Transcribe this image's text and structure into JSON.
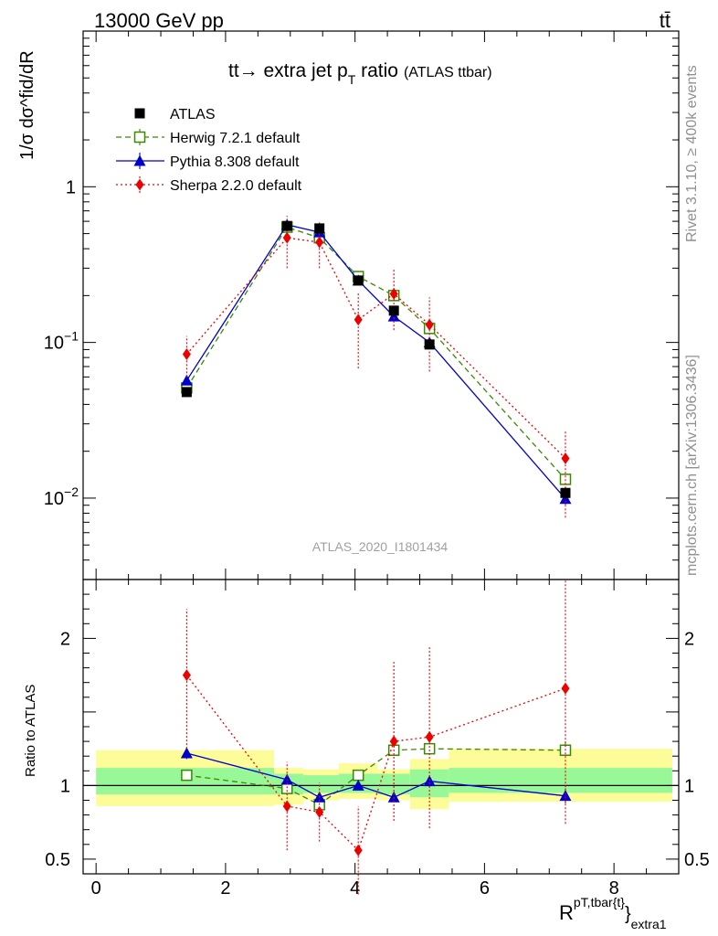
{
  "header": {
    "energy": "13000 GeV pp",
    "process": "tt̄"
  },
  "title": {
    "main": "tt→ extra jet p",
    "sub": "T",
    "tail": " ratio",
    "small": "(ATLAS ttbar)"
  },
  "side_labels": {
    "rivet": "Rivet 3.1.10, ≥ 400k events",
    "mcplots": "mcplots.cern.ch [arXiv:1306.3436]"
  },
  "analysis_id": "ATLAS_2020_I1801434",
  "axes": {
    "ylabel_top": "1/σ dσ^fid/dR",
    "ylabel_ratio": "Ratio to ATLAS",
    "xlabel": "R",
    "xlabel_sup": "pT,tbar{t}",
    "xlabel_close": "}",
    "xlabel_sub": "extra1"
  },
  "colors": {
    "atlas": "#000000",
    "herwig": "#3a8a00",
    "pythia": "#0000cc",
    "sherpa": "#ee0000",
    "band_inner": "#98f898",
    "band_outer": "#fcfc98"
  },
  "chart_data": [
    {
      "type": "line",
      "panel": "main",
      "yscale": "log",
      "xlim": [
        -0.2,
        9.0
      ],
      "ylim": [
        0.003,
        10
      ],
      "x_ticks": [
        0,
        2,
        4,
        6,
        8
      ],
      "y_tick_labels": [
        "1",
        "10^-1",
        "10^-2"
      ],
      "series": [
        {
          "name": "ATLAS",
          "marker": "square-filled",
          "x": [
            1.4,
            2.95,
            3.45,
            4.05,
            4.6,
            5.15,
            7.25
          ],
          "y": [
            0.048,
            0.56,
            0.54,
            0.25,
            0.16,
            0.097,
            0.0108
          ],
          "yerr": [
            0.003,
            0.03,
            0.03,
            0.015,
            0.01,
            0.006,
            0.0009
          ]
        },
        {
          "name": "Herwig 7.2.1 default",
          "marker": "square-open",
          "dash": "dashed",
          "x": [
            1.4,
            2.95,
            3.45,
            4.05,
            4.6,
            5.15,
            7.25
          ],
          "y": [
            0.051,
            0.55,
            0.47,
            0.265,
            0.2,
            0.123,
            0.0132
          ],
          "yerr": [
            0.002,
            0.02,
            0.02,
            0.01,
            0.008,
            0.006,
            0.0008
          ]
        },
        {
          "name": "Pythia 8.308 default",
          "marker": "triangle-filled",
          "dash": "solid",
          "x": [
            1.4,
            2.95,
            3.45,
            4.05,
            4.6,
            5.15,
            7.25
          ],
          "y": [
            0.057,
            0.57,
            0.51,
            0.25,
            0.147,
            0.1,
            0.0099
          ],
          "yerr": [
            0.003,
            0.02,
            0.02,
            0.01,
            0.008,
            0.005,
            0.0008
          ]
        },
        {
          "name": "Sherpa 2.2.0 default",
          "marker": "diamond-filled",
          "dash": "dotted",
          "x": [
            1.4,
            2.95,
            3.45,
            4.05,
            4.6,
            5.15,
            7.25
          ],
          "y": [
            0.084,
            0.47,
            0.44,
            0.14,
            0.205,
            0.13,
            0.018
          ],
          "ylo": [
            0.06,
            0.3,
            0.3,
            0.068,
            0.12,
            0.065,
            0.0075
          ],
          "yhi": [
            0.11,
            0.65,
            0.6,
            0.21,
            0.3,
            0.195,
            0.027
          ]
        }
      ]
    },
    {
      "type": "line",
      "panel": "ratio",
      "xlim": [
        -0.2,
        9.0
      ],
      "ylim": [
        0.4,
        2.4
      ],
      "x_ticks": [
        0,
        2,
        4,
        6,
        8
      ],
      "y_ticks": [
        0.5,
        1,
        2
      ],
      "x": [
        1.4,
        2.95,
        3.45,
        4.05,
        4.6,
        5.15,
        7.25
      ],
      "bands": [
        {
          "x0": 0.0,
          "x1": 2.75,
          "inner": [
            0.94,
            1.12
          ],
          "outer": [
            0.86,
            1.24
          ]
        },
        {
          "x0": 2.75,
          "x1": 3.2,
          "inner": [
            0.94,
            1.08
          ],
          "outer": [
            0.87,
            1.12
          ]
        },
        {
          "x0": 3.2,
          "x1": 3.75,
          "inner": [
            0.95,
            1.07
          ],
          "outer": [
            0.9,
            1.11
          ]
        },
        {
          "x0": 3.75,
          "x1": 4.35,
          "inner": [
            0.95,
            1.08
          ],
          "outer": [
            0.91,
            1.15
          ]
        },
        {
          "x0": 4.35,
          "x1": 4.85,
          "inner": [
            0.94,
            1.08
          ],
          "outer": [
            0.9,
            1.11
          ]
        },
        {
          "x0": 4.85,
          "x1": 5.45,
          "inner": [
            0.92,
            1.11
          ],
          "outer": [
            0.84,
            1.18
          ]
        },
        {
          "x0": 5.45,
          "x1": 8.9,
          "inner": [
            0.95,
            1.12
          ],
          "outer": [
            0.89,
            1.25
          ]
        }
      ],
      "series": [
        {
          "name": "Herwig 7.2.1 default",
          "y": [
            1.07,
            0.98,
            0.87,
            1.07,
            1.24,
            1.25,
            1.24
          ],
          "ylo": [
            1.05,
            0.96,
            0.85,
            1.05,
            1.22,
            1.23,
            1.2
          ],
          "yhi": [
            1.09,
            1.0,
            0.89,
            1.09,
            1.26,
            1.27,
            1.3
          ]
        },
        {
          "name": "Pythia 8.308 default",
          "y": [
            1.22,
            1.04,
            0.92,
            1.0,
            0.92,
            1.03,
            0.93
          ],
          "ylo": [
            1.18,
            1.01,
            0.89,
            0.97,
            0.89,
            0.99,
            0.88
          ],
          "yhi": [
            1.26,
            1.07,
            0.95,
            1.03,
            0.95,
            1.07,
            0.98
          ]
        },
        {
          "name": "Sherpa 2.2.0 default",
          "y": [
            1.75,
            0.86,
            0.82,
            0.56,
            1.3,
            1.33,
            1.66
          ],
          "ylo": [
            1.25,
            0.56,
            0.62,
            0.26,
            0.76,
            0.71,
            0.74
          ],
          "yhi": [
            2.2,
            1.16,
            1.02,
            0.86,
            1.84,
            1.95,
            2.5
          ]
        }
      ]
    }
  ]
}
